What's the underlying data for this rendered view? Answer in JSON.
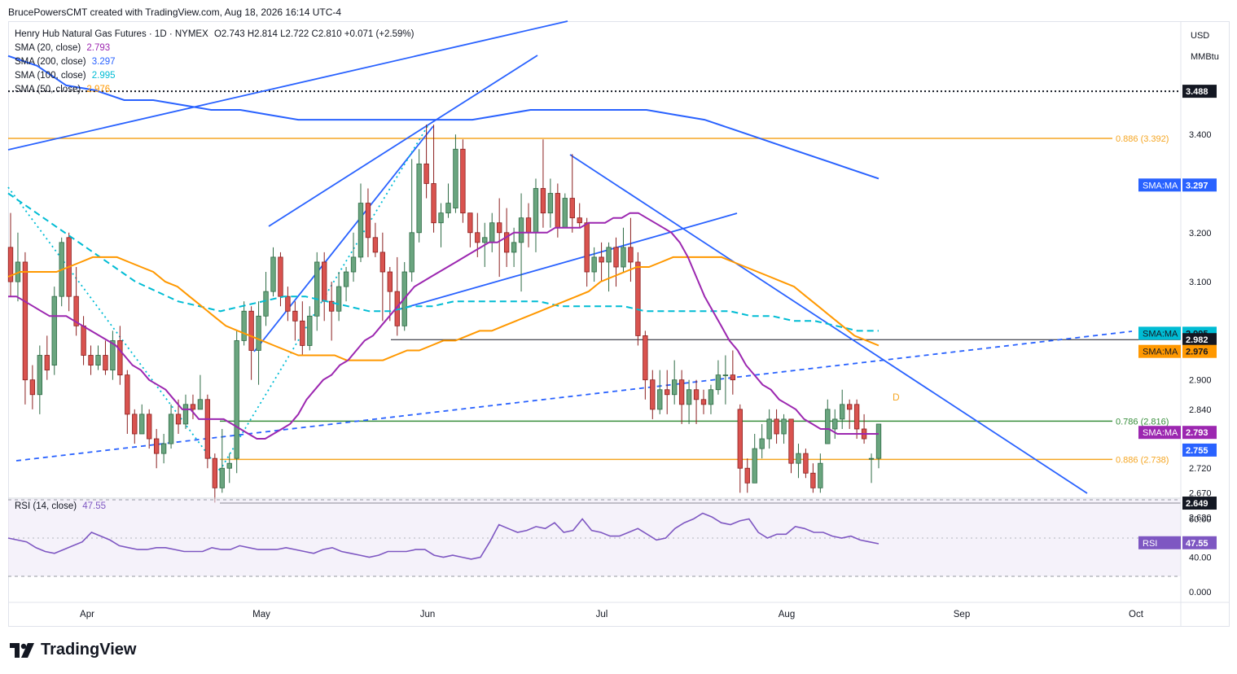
{
  "header": {
    "caption": "BrucePowersCMT created with TradingView.com, Aug 18, 2026 16:14 UTC-4"
  },
  "legend": {
    "title": "Henry Hub Natural Gas Futures · 1D · NYMEX",
    "ohlc": "O2.743  H2.814  L2.722  C2.810  +0.071 (+2.59%)",
    "change_color": "#089981",
    "indicators": [
      {
        "label": "SMA (20, close)",
        "value": "2.793",
        "color": "#9c27b0"
      },
      {
        "label": "SMA (200, close)",
        "value": "3.297",
        "color": "#2962ff"
      },
      {
        "label": "SMA (100, close)",
        "value": "2.995",
        "color": "#00bcd4"
      },
      {
        "label": "SMA (50, close)",
        "value": "2.976",
        "color": "#ff9800"
      }
    ]
  },
  "rsi_legend": {
    "label": "RSI (14, close)",
    "value": "47.55",
    "color": "#7e57c2"
  },
  "axis": {
    "currency": "USD",
    "unit": "MMBtu"
  },
  "brand": {
    "name": "TradingView"
  },
  "chart_data": {
    "type": "candlestick",
    "price_axis": {
      "ylim": [
        2.58,
        3.56
      ],
      "ticks": [
        "3.400",
        "3.200",
        "3.100",
        "2.900",
        "2.840",
        "2.720",
        "2.670",
        "2.620"
      ]
    },
    "rsi_axis": {
      "ticks": [
        "60.00",
        "40.00",
        "0.000"
      ],
      "upper_band": 70,
      "lower_band": 30
    },
    "x_ticks": [
      "Apr",
      "May",
      "Jun",
      "Jul",
      "Aug",
      "Sep",
      "Oct"
    ],
    "candles": [
      [
        3.17,
        3.1,
        3.24,
        3.07
      ],
      [
        3.1,
        3.14,
        3.2,
        3.06
      ],
      [
        3.14,
        2.9,
        3.16,
        2.85
      ],
      [
        2.9,
        2.87,
        2.93,
        2.84
      ],
      [
        2.87,
        2.95,
        2.97,
        2.83
      ],
      [
        2.95,
        2.92,
        2.99,
        2.9
      ],
      [
        2.93,
        3.07,
        3.09,
        2.91
      ],
      [
        3.07,
        3.18,
        3.19,
        3.05
      ],
      [
        3.19,
        3.07,
        3.2,
        3.04
      ],
      [
        3.07,
        3.01,
        3.13,
        2.99
      ],
      [
        3.01,
        2.95,
        3.03,
        2.93
      ],
      [
        2.95,
        2.93,
        2.97,
        2.91
      ],
      [
        2.93,
        2.95,
        2.97,
        2.92
      ],
      [
        2.95,
        2.92,
        2.98,
        2.91
      ],
      [
        2.92,
        2.98,
        3.0,
        2.9
      ],
      [
        2.98,
        2.91,
        3.01,
        2.89
      ],
      [
        2.91,
        2.83,
        2.92,
        2.79
      ],
      [
        2.83,
        2.79,
        2.84,
        2.77
      ],
      [
        2.79,
        2.83,
        2.85,
        2.79
      ],
      [
        2.83,
        2.78,
        2.84,
        2.76
      ],
      [
        2.78,
        2.75,
        2.8,
        2.72
      ],
      [
        2.75,
        2.77,
        2.79,
        2.73
      ],
      [
        2.77,
        2.83,
        2.85,
        2.76
      ],
      [
        2.83,
        2.81,
        2.86,
        2.79
      ],
      [
        2.81,
        2.85,
        2.87,
        2.8
      ],
      [
        2.85,
        2.84,
        2.87,
        2.82
      ],
      [
        2.84,
        2.86,
        2.91,
        2.84
      ],
      [
        2.86,
        2.74,
        2.87,
        2.72
      ],
      [
        2.74,
        2.68,
        2.75,
        2.65
      ],
      [
        2.68,
        2.72,
        2.8,
        2.67
      ],
      [
        2.72,
        2.73,
        2.75,
        2.69
      ],
      [
        2.74,
        2.98,
        3.0,
        2.71
      ],
      [
        2.98,
        3.04,
        3.06,
        2.97
      ],
      [
        3.04,
        2.96,
        3.05,
        2.9
      ],
      [
        2.96,
        3.03,
        3.06,
        2.89
      ],
      [
        3.03,
        3.08,
        3.12,
        3.01
      ],
      [
        3.08,
        3.15,
        3.17,
        3.07
      ],
      [
        3.15,
        3.07,
        3.16,
        3.05
      ],
      [
        3.07,
        3.04,
        3.09,
        3.02
      ],
      [
        3.04,
        3.02,
        3.06,
        2.98
      ],
      [
        3.02,
        2.97,
        3.06,
        2.95
      ],
      [
        2.97,
        3.03,
        3.05,
        2.96
      ],
      [
        3.03,
        3.14,
        3.16,
        3.0
      ],
      [
        3.14,
        3.06,
        3.16,
        3.02
      ],
      [
        3.06,
        3.04,
        3.1,
        2.98
      ],
      [
        3.04,
        3.09,
        3.12,
        3.02
      ],
      [
        3.09,
        3.12,
        3.13,
        3.06
      ],
      [
        3.12,
        3.15,
        3.2,
        3.1
      ],
      [
        3.15,
        3.26,
        3.3,
        3.14
      ],
      [
        3.26,
        3.19,
        3.29,
        3.15
      ],
      [
        3.19,
        3.16,
        3.22,
        3.15
      ],
      [
        3.16,
        3.12,
        3.2,
        3.02
      ],
      [
        3.12,
        3.08,
        3.13,
        3.02
      ],
      [
        3.08,
        3.01,
        3.15,
        2.99
      ],
      [
        3.01,
        3.12,
        3.14,
        3.0
      ],
      [
        3.12,
        3.2,
        3.35,
        3.1
      ],
      [
        3.2,
        3.34,
        3.37,
        3.18
      ],
      [
        3.34,
        3.3,
        3.42,
        3.27
      ],
      [
        3.3,
        3.22,
        3.42,
        3.2
      ],
      [
        3.22,
        3.24,
        3.26,
        3.17
      ],
      [
        3.24,
        3.26,
        3.3,
        3.23
      ],
      [
        3.25,
        3.37,
        3.4,
        3.24
      ],
      [
        3.37,
        3.24,
        3.39,
        3.22
      ],
      [
        3.24,
        3.2,
        3.21,
        3.17
      ],
      [
        3.2,
        3.18,
        3.24,
        3.15
      ],
      [
        3.18,
        3.19,
        3.22,
        3.13
      ],
      [
        3.18,
        3.22,
        3.24,
        3.16
      ],
      [
        3.22,
        3.2,
        3.27,
        3.11
      ],
      [
        3.2,
        3.16,
        3.25,
        3.13
      ],
      [
        3.16,
        3.18,
        3.21,
        3.13
      ],
      [
        3.18,
        3.23,
        3.28,
        3.08
      ],
      [
        3.23,
        3.2,
        3.26,
        3.17
      ],
      [
        3.2,
        3.29,
        3.31,
        3.16
      ],
      [
        3.29,
        3.24,
        3.39,
        3.21
      ],
      [
        3.24,
        3.28,
        3.31,
        3.21
      ],
      [
        3.28,
        3.21,
        3.3,
        3.19
      ],
      [
        3.21,
        3.27,
        3.28,
        3.24
      ],
      [
        3.27,
        3.23,
        3.36,
        3.2
      ],
      [
        3.23,
        3.22,
        3.26,
        3.21
      ],
      [
        3.22,
        3.12,
        3.23,
        3.09
      ],
      [
        3.12,
        3.15,
        3.17,
        3.1
      ],
      [
        3.15,
        3.14,
        3.18,
        3.1
      ],
      [
        3.14,
        3.17,
        3.18,
        3.08
      ],
      [
        3.17,
        3.13,
        3.19,
        3.09
      ],
      [
        3.13,
        3.17,
        3.21,
        3.12
      ],
      [
        3.17,
        3.14,
        3.23,
        3.1
      ],
      [
        3.14,
        2.99,
        3.16,
        2.97
      ],
      [
        2.99,
        2.9,
        3.0,
        2.86
      ],
      [
        2.9,
        2.84,
        2.92,
        2.82
      ],
      [
        2.84,
        2.88,
        2.92,
        2.83
      ],
      [
        2.88,
        2.87,
        2.92,
        2.83
      ],
      [
        2.87,
        2.9,
        2.94,
        2.85
      ],
      [
        2.9,
        2.85,
        2.92,
        2.81
      ],
      [
        2.85,
        2.88,
        2.9,
        2.81
      ],
      [
        2.88,
        2.86,
        2.9,
        2.81
      ],
      [
        2.86,
        2.85,
        2.88,
        2.83
      ],
      [
        2.85,
        2.88,
        2.89,
        2.83
      ],
      [
        2.88,
        2.91,
        2.94,
        2.87
      ],
      [
        2.91,
        2.91,
        2.95,
        2.85
      ],
      [
        2.91,
        2.9,
        2.96,
        2.87
      ],
      [
        2.84,
        2.72,
        2.85,
        2.67
      ],
      [
        2.72,
        2.69,
        2.74,
        2.67
      ],
      [
        2.69,
        2.76,
        2.79,
        2.69
      ],
      [
        2.76,
        2.78,
        2.81,
        2.74
      ],
      [
        2.78,
        2.82,
        2.84,
        2.76
      ],
      [
        2.82,
        2.79,
        2.84,
        2.77
      ],
      [
        2.79,
        2.82,
        2.83,
        2.77
      ],
      [
        2.82,
        2.73,
        2.82,
        2.71
      ],
      [
        2.73,
        2.75,
        2.77,
        2.7
      ],
      [
        2.75,
        2.71,
        2.76,
        2.7
      ],
      [
        2.71,
        2.68,
        2.73,
        2.67
      ],
      [
        2.68,
        2.73,
        2.75,
        2.67
      ],
      [
        2.77,
        2.84,
        2.86,
        2.77
      ],
      [
        2.8,
        2.82,
        2.84,
        2.78
      ],
      [
        2.82,
        2.85,
        2.88,
        2.8
      ],
      [
        2.85,
        2.84,
        2.86,
        2.8
      ],
      [
        2.85,
        2.8,
        2.86,
        2.78
      ],
      [
        2.8,
        2.78,
        2.83,
        2.77
      ],
      [
        2.74,
        2.74,
        2.75,
        2.69
      ],
      [
        2.74,
        2.81,
        2.81,
        2.72
      ]
    ],
    "candle_x_range": [
      13,
      1079
    ],
    "sma20": [
      3.07,
      3.07,
      3.06,
      3.05,
      3.04,
      3.03,
      3.03,
      3.03,
      3.02,
      3.01,
      3.0,
      2.99,
      2.98,
      2.97,
      2.95,
      2.93,
      2.92,
      2.9,
      2.89,
      2.88,
      2.86,
      2.84,
      2.84,
      2.82,
      2.82,
      2.82,
      2.82,
      2.81,
      2.8,
      2.79,
      2.78,
      2.78,
      2.79,
      2.8,
      2.81,
      2.83,
      2.86,
      2.88,
      2.9,
      2.91,
      2.93,
      2.94,
      2.96,
      2.98,
      2.99,
      3.01,
      3.03,
      3.05,
      3.07,
      3.09,
      3.1,
      3.11,
      3.12,
      3.13,
      3.14,
      3.15,
      3.16,
      3.17,
      3.18,
      3.18,
      3.19,
      3.2,
      3.2,
      3.2,
      3.2,
      3.2,
      3.21,
      3.21,
      3.21,
      3.21,
      3.22,
      3.22,
      3.22,
      3.23,
      3.23,
      3.24,
      3.24,
      3.23,
      3.22,
      3.21,
      3.2,
      3.18,
      3.15,
      3.11,
      3.07,
      3.04,
      3.01,
      2.98,
      2.96,
      2.93,
      2.91,
      2.89,
      2.88,
      2.86,
      2.85,
      2.84,
      2.82,
      2.81,
      2.8,
      2.8,
      2.79,
      2.79,
      2.79,
      2.79,
      2.79,
      2.79
    ],
    "sma50": [
      3.11,
      3.12,
      3.12,
      3.12,
      3.12,
      3.13,
      3.14,
      3.15,
      3.15,
      3.15,
      3.14,
      3.13,
      3.12,
      3.1,
      3.09,
      3.07,
      3.05,
      3.03,
      3.01,
      3.0,
      2.99,
      2.98,
      2.97,
      2.96,
      2.95,
      2.95,
      2.95,
      2.95,
      2.94,
      2.94,
      2.94,
      2.94,
      2.95,
      2.96,
      2.96,
      2.97,
      2.98,
      2.98,
      2.99,
      3.0,
      3.0,
      3.01,
      3.02,
      3.03,
      3.04,
      3.05,
      3.06,
      3.07,
      3.08,
      3.1,
      3.11,
      3.12,
      3.13,
      3.13,
      3.14,
      3.15,
      3.15,
      3.15,
      3.15,
      3.15,
      3.14,
      3.13,
      3.12,
      3.11,
      3.1,
      3.09,
      3.07,
      3.05,
      3.03,
      3.01,
      2.99,
      2.98,
      2.97
    ],
    "sma100": [
      3.28,
      3.25,
      3.22,
      3.19,
      3.16,
      3.13,
      3.1,
      3.08,
      3.06,
      3.05,
      3.04,
      3.05,
      3.06,
      3.07,
      3.07,
      3.06,
      3.05,
      3.04,
      3.04,
      3.05,
      3.05,
      3.06,
      3.06,
      3.06,
      3.06,
      3.06,
      3.05,
      3.05,
      3.05,
      3.05,
      3.04,
      3.04,
      3.04,
      3.04,
      3.04,
      3.03,
      3.03,
      3.02,
      3.02,
      3.01,
      3.0,
      3.0
    ],
    "sma200": [
      3.56,
      3.54,
      3.5,
      3.49,
      3.47,
      3.47,
      3.46,
      3.45,
      3.45,
      3.44,
      3.43,
      3.43,
      3.43,
      3.43,
      3.43,
      3.43,
      3.43,
      3.44,
      3.45,
      3.45,
      3.45,
      3.45,
      3.45,
      3.44,
      3.43,
      3.41,
      3.39,
      3.37,
      3.35,
      3.33,
      3.31
    ],
    "rsi": [
      50,
      49,
      48,
      45,
      43,
      42,
      44,
      46,
      48,
      53,
      51,
      49,
      46,
      45,
      44,
      44,
      45,
      45,
      44,
      43,
      43,
      43,
      45,
      44,
      44,
      46,
      45,
      44,
      44,
      44,
      45,
      44,
      43,
      42,
      44,
      45,
      43,
      42,
      41,
      40,
      41,
      43,
      43,
      43,
      44,
      44,
      41,
      40,
      41,
      40,
      39,
      40,
      48,
      57,
      55,
      53,
      54,
      56,
      55,
      58,
      53,
      54,
      60,
      54,
      53,
      51,
      51,
      53,
      55,
      52,
      49,
      50,
      55,
      58,
      60,
      63,
      61,
      58,
      57,
      59,
      60,
      53,
      50,
      52,
      52,
      56,
      55,
      53,
      53,
      51,
      50,
      51,
      49,
      48,
      47
    ],
    "rsi_x_range": [
      10,
      1079
    ]
  }
}
